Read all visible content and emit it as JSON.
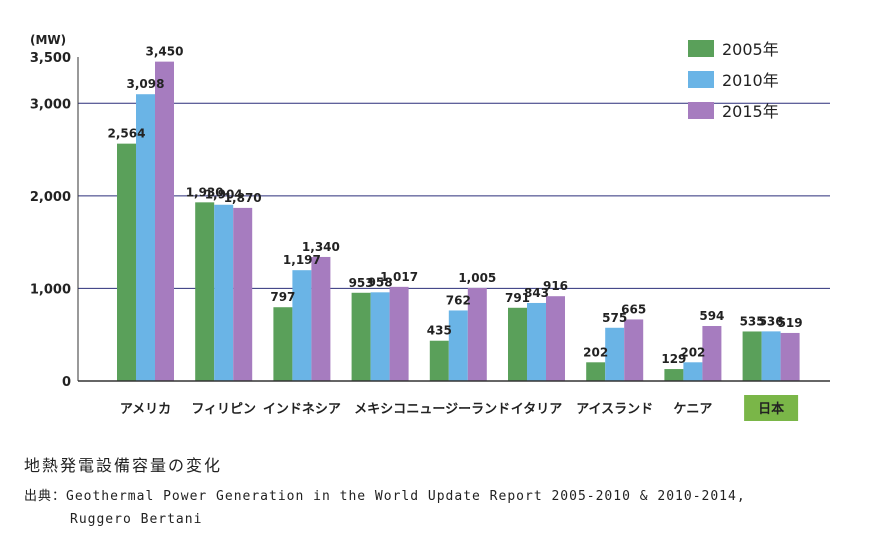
{
  "chart_data": {
    "type": "bar",
    "ylabel": "(MW)",
    "ylim": [
      0,
      3500
    ],
    "yticks": [
      "0",
      "1,000",
      "2,000",
      "3,000",
      "3,500"
    ],
    "ytick_values": [
      0,
      1000,
      2000,
      3000,
      3500
    ],
    "gridlines": [
      1000,
      2000,
      3000
    ],
    "grid": true,
    "legend_position": "top-right",
    "categories": [
      "アメリカ",
      "フィリピン",
      "インドネシア",
      "メキシコ",
      "ニュージーランド",
      "イタリア",
      "アイスランド",
      "ケニア",
      "日本"
    ],
    "highlight_category": "日本",
    "series": [
      {
        "name": "2005年",
        "color": "#5aa05a",
        "values": [
          2564,
          1930,
          797,
          953,
          435,
          791,
          202,
          129,
          535
        ],
        "labels": [
          "2,564",
          "1,930",
          "797",
          "953",
          "435",
          "791",
          "202",
          "129",
          "535"
        ]
      },
      {
        "name": "2010年",
        "color": "#6ab4e6",
        "values": [
          3098,
          1904,
          1197,
          958,
          762,
          843,
          575,
          202,
          536
        ],
        "labels": [
          "3,098",
          "1,904",
          "1,197",
          "958",
          "762",
          "843",
          "575",
          "202",
          "536"
        ]
      },
      {
        "name": "2015年",
        "color": "#a67cbf",
        "values": [
          3450,
          1870,
          1340,
          1017,
          1005,
          916,
          665,
          594,
          519
        ],
        "labels": [
          "3,450",
          "1,870",
          "1,340",
          "1,017",
          "1,005",
          "916",
          "665",
          "594",
          "519"
        ]
      }
    ]
  },
  "caption": "地熱発電設備容量の変化",
  "source_line1": "出典：Geothermal Power Generation in the World Update Report 2005-2010 & 2010-2014,",
  "source_line2": "Ruggero Bertani",
  "colors": {
    "grid": "#2b2f7a",
    "axis": "#333333",
    "highlight_bg": "#7ab648"
  }
}
